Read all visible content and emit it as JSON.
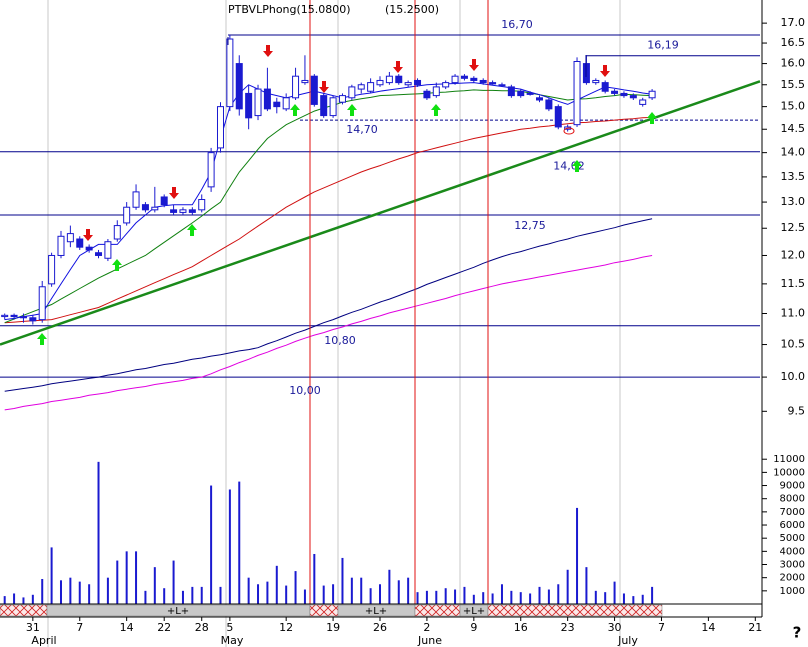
{
  "chart_data": {
    "type": "candlestick",
    "title": "PTBVLPhong(15.0800)",
    "subtitle": "(15.2500)",
    "help": "?",
    "log_scale": true,
    "candle_color": "#1a1ad0",
    "categories": [
      null,
      null,
      null,
      "31",
      null,
      null,
      null,
      null,
      "7",
      null,
      null,
      null,
      null,
      "14",
      null,
      null,
      null,
      "22",
      null,
      null,
      null,
      "28",
      null,
      null,
      "5",
      null,
      null,
      null,
      null,
      null,
      "12",
      null,
      null,
      null,
      null,
      "19",
      null,
      null,
      null,
      null,
      "26",
      null,
      null,
      null,
      null,
      "2",
      null,
      null,
      null,
      null,
      "9",
      null,
      null,
      null,
      null,
      "16",
      null,
      null,
      null,
      null,
      "23",
      null,
      null,
      null,
      null,
      "30",
      null,
      null,
      null,
      null,
      "7",
      null,
      null,
      null,
      null,
      "14",
      null,
      null,
      null,
      null,
      "21"
    ],
    "month_labels": [
      "April",
      "May",
      "June",
      "July"
    ],
    "open": [
      10.95,
      10.97,
      10.95,
      10.93,
      10.9,
      11.5,
      12.0,
      12.25,
      12.3,
      12.15,
      12.05,
      11.95,
      12.3,
      12.6,
      12.9,
      12.95,
      12.85,
      13.1,
      12.85,
      12.8,
      12.85,
      12.85,
      13.3,
      14.1,
      15.0,
      16.0,
      15.3,
      14.8,
      15.4,
      15.1,
      14.95,
      15.2,
      15.55,
      15.7,
      15.25,
      14.8,
      15.1,
      15.2,
      15.4,
      15.35,
      15.5,
      15.55,
      15.7,
      15.5,
      15.6,
      15.35,
      15.25,
      15.45,
      15.55,
      15.7,
      15.65,
      15.6,
      15.55,
      15.5,
      15.45,
      15.35,
      15.3,
      15.2,
      15.15,
      15.0,
      14.5,
      14.6,
      16.0,
      15.55,
      15.55,
      15.35,
      15.3,
      15.25,
      15.05,
      15.2,
      null,
      null,
      null,
      null,
      null,
      null,
      null,
      null,
      null,
      null,
      null
    ],
    "high": [
      11.0,
      11.0,
      11.0,
      10.98,
      11.55,
      12.05,
      12.45,
      12.55,
      12.35,
      12.2,
      12.1,
      12.3,
      12.65,
      13.0,
      13.35,
      13.0,
      13.3,
      13.15,
      12.95,
      12.9,
      12.9,
      13.15,
      14.1,
      15.1,
      16.7,
      16.2,
      15.5,
      15.5,
      15.9,
      15.2,
      15.3,
      15.9,
      16.2,
      15.75,
      15.3,
      15.25,
      15.3,
      15.5,
      15.55,
      15.65,
      15.7,
      15.8,
      15.75,
      15.6,
      15.65,
      15.4,
      15.55,
      15.6,
      15.75,
      15.75,
      15.7,
      15.65,
      15.6,
      15.55,
      15.5,
      15.4,
      15.35,
      15.25,
      15.2,
      15.05,
      14.6,
      16.15,
      16.2,
      15.65,
      15.6,
      15.4,
      15.35,
      15.3,
      15.2,
      15.4,
      null,
      null,
      null,
      null,
      null,
      null,
      null,
      null,
      null,
      null,
      null
    ],
    "low": [
      10.9,
      10.9,
      10.85,
      10.82,
      10.85,
      11.45,
      11.95,
      12.15,
      12.1,
      12.05,
      11.95,
      11.9,
      12.25,
      12.55,
      12.85,
      12.8,
      12.8,
      12.9,
      12.75,
      12.75,
      12.75,
      12.8,
      13.2,
      14.0,
      14.9,
      14.8,
      14.5,
      14.7,
      14.9,
      14.85,
      14.9,
      15.15,
      15.5,
      15.0,
      14.75,
      14.75,
      15.05,
      15.15,
      15.3,
      15.3,
      15.45,
      15.5,
      15.5,
      15.45,
      15.45,
      15.15,
      15.2,
      15.4,
      15.5,
      15.6,
      15.55,
      15.5,
      15.5,
      15.45,
      15.2,
      15.2,
      15.25,
      15.1,
      14.9,
      14.5,
      14.45,
      14.55,
      15.5,
      15.5,
      15.3,
      15.25,
      15.2,
      15.15,
      15.0,
      15.15,
      null,
      null,
      null,
      null,
      null,
      null,
      null,
      null,
      null,
      null,
      null
    ],
    "close": [
      10.97,
      10.95,
      10.93,
      10.88,
      11.45,
      12.0,
      12.35,
      12.4,
      12.15,
      12.1,
      12.0,
      12.25,
      12.55,
      12.9,
      13.2,
      12.85,
      12.9,
      12.95,
      12.8,
      12.85,
      12.8,
      13.05,
      14.0,
      15.0,
      16.6,
      14.95,
      14.75,
      15.4,
      14.95,
      15.0,
      15.2,
      15.7,
      15.6,
      15.05,
      14.8,
      15.2,
      15.25,
      15.45,
      15.5,
      15.55,
      15.6,
      15.7,
      15.55,
      15.55,
      15.5,
      15.2,
      15.45,
      15.55,
      15.7,
      15.65,
      15.6,
      15.55,
      15.52,
      15.48,
      15.25,
      15.25,
      15.3,
      15.15,
      14.95,
      14.55,
      14.55,
      16.05,
      15.55,
      15.6,
      15.35,
      15.3,
      15.25,
      15.2,
      15.15,
      15.35,
      null,
      null,
      null,
      null,
      null,
      null,
      null,
      null,
      null,
      null,
      null
    ],
    "volume": [
      600,
      800,
      500,
      700,
      1900,
      4300,
      1800,
      2000,
      1700,
      1500,
      10800,
      2000,
      3300,
      4000,
      4000,
      1000,
      2800,
      1200,
      3300,
      1000,
      1300,
      1300,
      9000,
      1300,
      8700,
      9300,
      2000,
      1500,
      1700,
      2900,
      1400,
      2500,
      1100,
      3800,
      1400,
      1500,
      3500,
      2000,
      2000,
      1200,
      1500,
      2600,
      1800,
      2000,
      900,
      1000,
      1000,
      1200,
      1100,
      1300,
      700,
      900,
      800,
      1500,
      1000,
      900,
      800,
      1300,
      1100,
      1500,
      2600,
      7300,
      2800,
      1000,
      900,
      1700,
      800,
      600,
      700,
      1300,
      null,
      null,
      null,
      null,
      null,
      null,
      null,
      null,
      null,
      null,
      null
    ],
    "overlays": [
      {
        "color": "#000080",
        "values": [
          9.79,
          9.81,
          9.83,
          9.85,
          9.87,
          9.9,
          9.92,
          9.94,
          9.96,
          9.98,
          10.0,
          10.03,
          10.05,
          10.08,
          10.11,
          10.13,
          10.16,
          10.19,
          10.21,
          10.24,
          10.27,
          10.29,
          10.32,
          10.34,
          10.37,
          10.4,
          10.42,
          10.45,
          10.51,
          10.56,
          10.62,
          10.68,
          10.73,
          10.79,
          10.85,
          10.9,
          10.96,
          11.02,
          11.07,
          11.13,
          11.19,
          11.24,
          11.3,
          11.36,
          11.42,
          11.49,
          11.55,
          11.61,
          11.67,
          11.73,
          11.79,
          11.86,
          11.92,
          11.98,
          12.03,
          12.07,
          12.12,
          12.17,
          12.21,
          12.26,
          12.3,
          12.35,
          12.39,
          12.43,
          12.47,
          12.51,
          12.56,
          12.6,
          12.64,
          12.68,
          null,
          null,
          null,
          null,
          null,
          null,
          null,
          null,
          null,
          null,
          null
        ]
      },
      {
        "color": "#e000e0",
        "values": [
          9.52,
          9.54,
          9.57,
          9.59,
          9.61,
          9.64,
          9.66,
          9.68,
          9.7,
          9.73,
          9.75,
          9.77,
          9.8,
          9.82,
          9.84,
          9.86,
          9.89,
          9.91,
          9.93,
          9.95,
          9.98,
          10.0,
          10.05,
          10.11,
          10.16,
          10.22,
          10.27,
          10.33,
          10.38,
          10.44,
          10.49,
          10.55,
          10.6,
          10.65,
          10.69,
          10.74,
          10.78,
          10.83,
          10.87,
          10.92,
          10.96,
          11.01,
          11.05,
          11.09,
          11.13,
          11.17,
          11.21,
          11.25,
          11.3,
          11.34,
          11.38,
          11.42,
          11.46,
          11.5,
          11.53,
          11.56,
          11.59,
          11.62,
          11.65,
          11.68,
          11.71,
          11.74,
          11.77,
          11.8,
          11.83,
          11.87,
          11.9,
          11.93,
          11.97,
          12.0,
          null,
          null,
          null,
          null,
          null,
          null,
          null,
          null,
          null,
          null,
          null
        ]
      },
      {
        "color": "#d01010",
        "values": [
          10.85,
          10.86,
          10.87,
          10.88,
          10.89,
          10.9,
          10.94,
          10.98,
          11.02,
          11.06,
          11.1,
          11.17,
          11.24,
          11.31,
          11.38,
          11.45,
          11.52,
          11.59,
          11.66,
          11.73,
          11.8,
          11.9,
          12.0,
          12.1,
          12.2,
          12.3,
          12.42,
          12.54,
          12.66,
          12.78,
          12.9,
          13.0,
          13.1,
          13.2,
          13.28,
          13.36,
          13.44,
          13.52,
          13.6,
          13.67,
          13.73,
          13.8,
          13.87,
          13.93,
          14.0,
          14.05,
          14.1,
          14.15,
          14.2,
          14.25,
          14.3,
          14.34,
          14.38,
          14.42,
          14.46,
          14.5,
          14.52,
          14.55,
          14.57,
          14.6,
          14.62,
          14.64,
          14.65,
          14.67,
          14.68,
          14.7,
          14.72,
          14.73,
          14.75,
          14.76,
          null,
          null,
          null,
          null,
          null,
          null,
          null,
          null,
          null,
          null,
          null
        ]
      },
      {
        "color": "#108010",
        "values": [
          10.85,
          10.91,
          10.97,
          11.03,
          11.09,
          11.15,
          11.24,
          11.33,
          11.42,
          11.51,
          11.6,
          11.68,
          11.76,
          11.84,
          11.92,
          12.0,
          12.12,
          12.24,
          12.36,
          12.48,
          12.6,
          12.73,
          12.87,
          13.0,
          13.3,
          13.6,
          13.83,
          14.07,
          14.3,
          14.45,
          14.6,
          14.7,
          14.8,
          14.9,
          14.97,
          15.03,
          15.1,
          15.14,
          15.18,
          15.21,
          15.25,
          15.26,
          15.27,
          15.28,
          15.29,
          15.3,
          15.32,
          15.33,
          15.35,
          15.36,
          15.38,
          15.37,
          15.37,
          15.36,
          15.36,
          15.35,
          15.31,
          15.27,
          15.23,
          15.19,
          15.15,
          15.17,
          15.18,
          15.2,
          15.23,
          15.25,
          15.28,
          15.27,
          15.26,
          15.25,
          null,
          null,
          null,
          null,
          null,
          null,
          null,
          null,
          null,
          null,
          null
        ]
      },
      {
        "color": "#1010e0",
        "values": [
          10.9,
          10.92,
          10.95,
          10.97,
          11.0,
          11.25,
          11.5,
          11.75,
          12.0,
          12.1,
          12.2,
          12.2,
          12.2,
          12.4,
          12.6,
          12.75,
          12.9,
          12.93,
          12.95,
          12.95,
          12.95,
          13.25,
          13.6,
          14.3,
          15.0,
          15.3,
          15.5,
          15.4,
          15.3,
          15.25,
          15.2,
          15.25,
          15.3,
          15.35,
          15.3,
          15.25,
          15.2,
          15.24,
          15.28,
          15.31,
          15.35,
          15.38,
          15.41,
          15.44,
          15.47,
          15.5,
          15.51,
          15.52,
          15.53,
          15.54,
          15.55,
          15.52,
          15.49,
          15.46,
          15.43,
          15.4,
          15.33,
          15.27,
          15.2,
          15.12,
          15.05,
          15.15,
          15.25,
          15.35,
          15.45,
          15.42,
          15.38,
          15.35,
          15.31,
          15.28,
          null,
          null,
          null,
          null,
          null,
          null,
          null,
          null,
          null,
          null,
          null
        ]
      }
    ],
    "trendline": {
      "color": "#1a8a1a",
      "values": [
        10.5,
        15.58
      ]
    },
    "levels": [
      {
        "value": 16.7,
        "label": "16,70"
      },
      {
        "value": 16.19,
        "label": "16,19"
      },
      {
        "value": 14.7,
        "label": "14,70"
      },
      {
        "value": 14.02,
        "label": "14,02"
      },
      {
        "value": 12.75,
        "label": "12,75"
      },
      {
        "value": 10.8,
        "label": "10,80"
      },
      {
        "value": 10.0,
        "label": "10,00"
      }
    ],
    "level_color": "#00008b",
    "ylim": [
      9.1,
      17.6
    ],
    "yticks": [
      {
        "value": 17,
        "label": "17.0"
      },
      {
        "value": 16.5,
        "label": "16.5"
      },
      {
        "value": 16,
        "label": "16.0"
      },
      15.5,
      {
        "value": 15,
        "label": "15.0"
      },
      14.5,
      {
        "value": 14,
        "label": "14.0"
      },
      13.5,
      {
        "value": 13,
        "label": "13.0"
      },
      12.5,
      {
        "value": 12,
        "label": "12.0"
      },
      11.5,
      {
        "value": 11,
        "label": "11.0"
      },
      10.5,
      {
        "value": 10,
        "label": "10.0"
      },
      9.5
    ],
    "volume_ylim": [
      0,
      11700
    ],
    "volume_yticks": [
      1000,
      2000,
      3000,
      4000,
      5000,
      6000,
      7000,
      8000,
      9000,
      10000,
      11000
    ],
    "band_labels": [
      "+L+",
      "+L+",
      "+L+"
    ]
  }
}
